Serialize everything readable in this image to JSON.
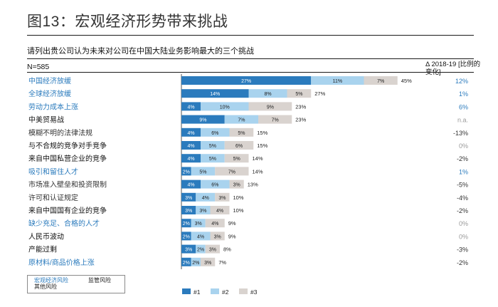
{
  "figure_title": "图13：宏观经济形势带来挑战",
  "subtitle": "请列出贵公司认为未来对公司在中国大陆业务影响最大的三个挑战",
  "sample_size": "N=585",
  "delta_header": "Δ 2018-19 [比例的变化]",
  "risk_legend": {
    "macro": "宏观经济风险",
    "regulatory": "监管风险",
    "other": "其他风险"
  },
  "colors": {
    "rank1": "#2b7bbd",
    "rank2": "#a9d3ee",
    "rank3": "#d9d3cf",
    "macro_text": "#2b7bbd",
    "regulatory_text": "#333333",
    "other_text": "#111111",
    "delta_positive": "#2b7bbd",
    "delta_negative": "#333333",
    "delta_neutral": "#999999"
  },
  "chart_data": {
    "type": "bar",
    "orientation": "horizontal",
    "stacked": true,
    "legend_position": "bottom",
    "grid": false,
    "categories": [
      "中国经济放缓",
      "全球经济放缓",
      "劳动力成本上涨",
      "中美贸易战",
      "模糊不明的法律法规",
      "与不合规的竞争对手竞争",
      "来自中国私营企业的竞争",
      "吸引和留住人才",
      "市场准入壁垒和投资限制",
      "许可和认证规定",
      "来自中国国有企业的竞争",
      "缺少充足、合格的人才",
      "人民币波动",
      "产能过剩",
      "原材料/商品价格上涨"
    ],
    "category_risk_type": [
      "macro",
      "macro",
      "macro",
      "other",
      "regulatory",
      "other",
      "other",
      "macro",
      "regulatory",
      "regulatory",
      "other",
      "macro",
      "other",
      "other",
      "macro"
    ],
    "series": [
      {
        "name": "#1",
        "values": [
          27,
          14,
          4,
          9,
          4,
          4,
          4,
          2,
          4,
          3,
          3,
          2,
          2,
          3,
          2
        ]
      },
      {
        "name": "#2",
        "values": [
          11,
          8,
          10,
          7,
          6,
          5,
          5,
          5,
          6,
          4,
          3,
          3,
          4,
          2,
          2
        ]
      },
      {
        "name": "#3",
        "values": [
          7,
          5,
          9,
          7,
          5,
          6,
          5,
          7,
          3,
          3,
          4,
          4,
          3,
          3,
          3
        ]
      }
    ],
    "series_labels": [
      [
        "27%",
        "14%",
        "4%",
        "9%",
        "4%",
        "4%",
        "4%",
        "2%",
        "4%",
        "3%",
        "3%",
        "2%",
        "2%",
        "3%",
        "2%"
      ],
      [
        "11%",
        "8%",
        "10%",
        "7%",
        "6%",
        "5%",
        "5%",
        "5%",
        "6%",
        "4%",
        "3%",
        "3%",
        "4%",
        "2%",
        "2%"
      ],
      [
        "7%",
        "5%",
        "9%",
        "7%",
        "5%",
        "6%",
        "5%",
        "7%",
        "3%",
        "3%",
        "4%",
        "4%",
        "3%",
        "3%",
        "3%"
      ]
    ],
    "totals": [
      "45%",
      "27%",
      "23%",
      "23%",
      "15%",
      "15%",
      "14%",
      "14%",
      "13%",
      "10%",
      "10%",
      "9%",
      "9%",
      "8%",
      "7%"
    ],
    "delta": [
      "12%",
      "1%",
      "6%",
      "n.a.",
      "-13%",
      "0%",
      "-2%",
      "1%",
      "-5%",
      "-4%",
      "-2%",
      "0%",
      "0%",
      "-3%",
      "-2%"
    ],
    "delta_sign": [
      "positive",
      "positive",
      "positive",
      "neutral",
      "negative",
      "neutral",
      "negative",
      "positive",
      "negative",
      "negative",
      "negative",
      "neutral",
      "neutral",
      "negative",
      "negative"
    ],
    "xlim": [
      0,
      45
    ]
  }
}
